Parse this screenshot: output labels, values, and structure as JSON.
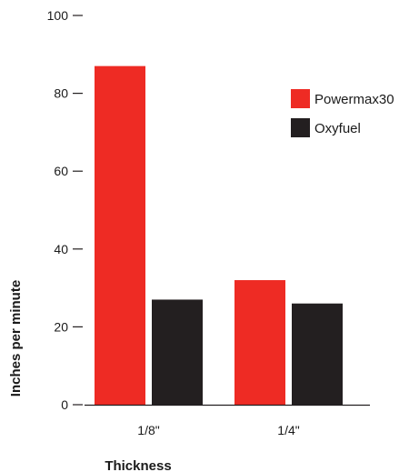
{
  "chart_data": {
    "type": "bar",
    "title": "",
    "xlabel": "Thickness",
    "ylabel": "Inches per minute",
    "categories": [
      "1/8\"",
      "1/4\""
    ],
    "series": [
      {
        "name": "Powermax30",
        "values": [
          87,
          32
        ],
        "color": "#ee2b24"
      },
      {
        "name": "Oxyfuel",
        "values": [
          27,
          26
        ],
        "color": "#231f20"
      }
    ],
    "ylim": [
      0,
      100
    ],
    "yticks": [
      0,
      20,
      40,
      60,
      80,
      100
    ],
    "grid": false,
    "legend_position": "top-right"
  }
}
